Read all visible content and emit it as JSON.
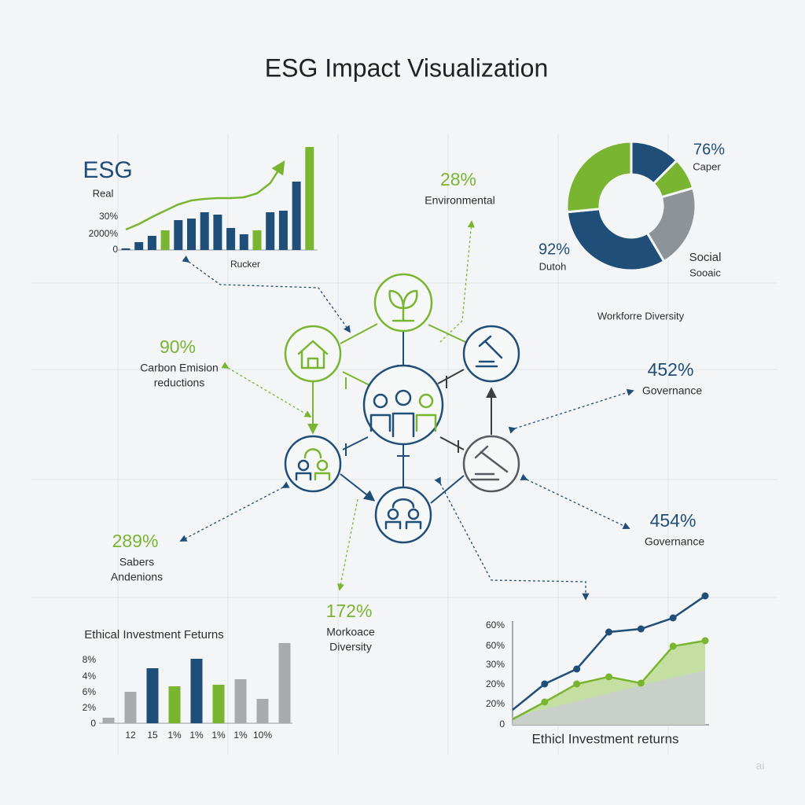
{
  "title": "ESG Impact Visualization",
  "chart_data": [
    {
      "type": "bar",
      "title": "ESG",
      "subtitle": "Real",
      "xlabel": "Rucker",
      "y_labels": [
        "30%",
        "2000%",
        "0"
      ],
      "ylim": [
        0,
        140
      ],
      "values": [
        2,
        10,
        18,
        25,
        38,
        40,
        48,
        45,
        28,
        20,
        25,
        48,
        50,
        87,
        131
      ],
      "colors": [
        "#1f4e79",
        "#1f4e79",
        "#1f4e79",
        "#7ab532",
        "#1f4e79",
        "#1f4e79",
        "#1f4e79",
        "#1f4e79",
        "#1f4e79",
        "#1f4e79",
        "#7ab532",
        "#1f4e79",
        "#1f4e79",
        "#1f4e79",
        "#7ab532"
      ],
      "line": {
        "color": "#7ab532",
        "values": [
          26,
          33,
          42,
          50,
          58,
          63,
          65,
          66,
          66,
          67,
          72,
          85,
          111,
          null,
          null
        ]
      }
    },
    {
      "type": "donut",
      "values": [
        12.5,
        8,
        21,
        32,
        26.5
      ],
      "colors": [
        "#1f4e79",
        "#7ab532",
        "#8c9499",
        "#1f4e79",
        "#7ab532"
      ],
      "annotations": [
        {
          "value": "76%",
          "label": "Caper"
        },
        {
          "value": "92%",
          "label": "Dutoh"
        },
        {
          "value": "Social",
          "label": "Sooaic"
        }
      ],
      "caption": "Workforre Diversity"
    },
    {
      "type": "bar",
      "title": "Ethical Investment Feturns",
      "y_labels": [
        "8%",
        "4%",
        "6%",
        "2%",
        "0"
      ],
      "ylim": [
        0,
        110
      ],
      "categories": [
        null,
        "12",
        "15",
        "1%",
        "1%",
        "1%",
        "1%",
        "10%",
        null
      ],
      "values": [
        7,
        40,
        70,
        47,
        82,
        49,
        56,
        31,
        102
      ],
      "colors": [
        "#a7abae",
        "#a7abae",
        "#1f4e79",
        "#7ab532",
        "#1f4e79",
        "#7ab532",
        "#a7abae",
        "#a7abae",
        "#a7abae"
      ]
    },
    {
      "type": "line",
      "xlabel": "Ethicl Investment returns",
      "y_labels": [
        "60%",
        "60%",
        "30%",
        "20%",
        "20%",
        "0"
      ],
      "ylim": [
        0,
        180
      ],
      "series": [
        {
          "color": "#1f4e79",
          "values": [
            19,
            52,
            71,
            118,
            122,
            136,
            164
          ]
        },
        {
          "color": "#7ab532",
          "fill": "#bcdb94",
          "values": [
            7,
            29,
            52,
            61,
            53,
            100,
            107
          ]
        }
      ],
      "area": {
        "color": "#c9cdd0",
        "values": [
          10,
          20,
          30,
          40,
          50,
          60,
          69
        ]
      }
    }
  ],
  "callouts": [
    {
      "value": "28%",
      "label": [
        "Environmental"
      ]
    },
    {
      "value": "90%",
      "label": [
        "Carbon Emision",
        "reductions"
      ]
    },
    {
      "value": "452%",
      "label": [
        "Governance"
      ]
    },
    {
      "value": "454%",
      "label": [
        "Governance"
      ]
    },
    {
      "value": "289%",
      "label": [
        "Sabers",
        "Andenions"
      ]
    },
    {
      "value": "172%",
      "label": [
        "Morkoace",
        "Diversity"
      ]
    }
  ],
  "watermark": "ai"
}
